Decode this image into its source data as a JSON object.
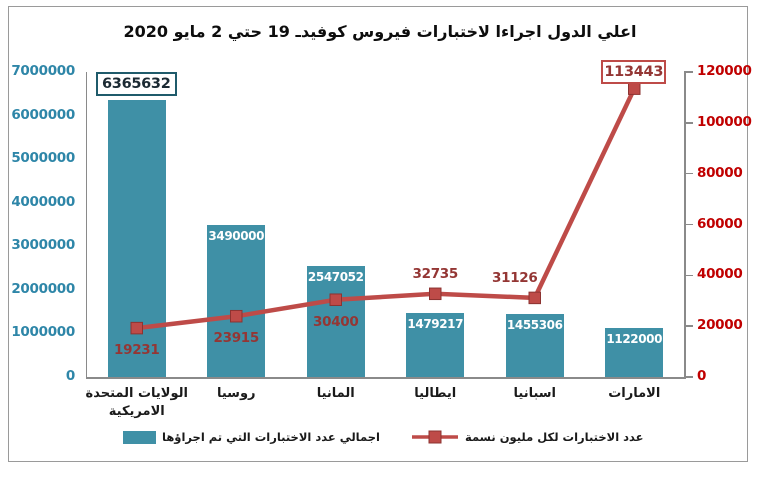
{
  "title": "اعلي الدول اجراءا لاختبارات فيروس كوفيدـ 19 حتي 2 مايو 2020",
  "colors": {
    "bar": "#3F90A6",
    "bar_label": "#FFFFFF",
    "line": "#BE4B48",
    "line_label": "#943634",
    "left_axis_label": "#2E86A8",
    "right_axis_label": "#C00000",
    "axis_line": "#8A8A8A",
    "text": "#1A1A1A",
    "bar_box_border": "#1F5B6B",
    "bar_box_text": "#1B2A33",
    "line_box_border": "#BE4B48",
    "line_box_text": "#943634"
  },
  "chart_data": {
    "type": "bar+line",
    "title": "اعلي الدول اجراءا لاختبارات فيروس كوفيدـ 19 حتي 2 مايو 2020",
    "categories": [
      "الولايات المتحدة الامريكية",
      "روسيا",
      "المانيا",
      "ايطاليا",
      "اسبانيا",
      "الامارات"
    ],
    "series": [
      {
        "name": "اجمالي عدد الاختبارات التي تم اجراؤها",
        "type": "bar",
        "axis": "left",
        "values": [
          6365632,
          3490000,
          2547052,
          1479217,
          1455306,
          1122000
        ],
        "label_style": [
          "box",
          "inside",
          "inside",
          "inside",
          "inside",
          "inside"
        ]
      },
      {
        "name": "عدد الاختبارات لكل مليون نسمة",
        "type": "line",
        "axis": "right",
        "values": [
          19231,
          23915,
          30400,
          32735,
          31126,
          113443
        ],
        "label_style": [
          "below",
          "below",
          "below",
          "above",
          "above",
          "box"
        ]
      }
    ],
    "left_axis": {
      "min": 0,
      "max": 7000000,
      "ticks": [
        "7000000",
        "6000000",
        "5000000",
        "4000000",
        "3000000",
        "2000000",
        "1000000",
        "0"
      ]
    },
    "right_axis": {
      "min": 0,
      "max": 120000,
      "ticks": [
        "120000",
        "100000",
        "80000",
        "60000",
        "40000",
        "20000",
        "0"
      ]
    },
    "legend_position": "bottom",
    "grid": false
  }
}
